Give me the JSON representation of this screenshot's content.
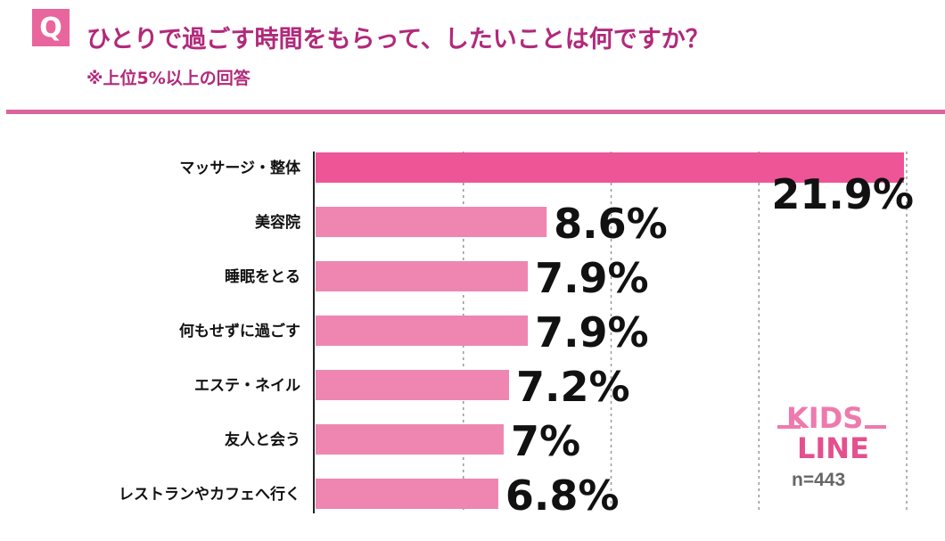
{
  "header": {
    "q_label": "Q",
    "title": "ひとりで過ごす時間をもらって、したいことは何ですか？",
    "subtitle": "※上位5%以上の回答"
  },
  "logo": {
    "text": "KIDS LINE"
  },
  "sample": "n=443",
  "colors": {
    "top_bar": "#ee5597",
    "bar": "#ee86b1",
    "accent": "#b2297a"
  },
  "chart_data": {
    "type": "bar",
    "orientation": "horizontal",
    "categories": [
      "マッサージ・整体",
      "美容院",
      "睡眠をとる",
      "何もせずに過ごす",
      "エステ・ネイル",
      "友人と会う",
      "レストランやカフェへ行く"
    ],
    "values": [
      21.9,
      8.6,
      7.9,
      7.9,
      7.2,
      7,
      6.8
    ],
    "labels": [
      "21.9%",
      "8.6%",
      "7.9%",
      "7.9%",
      "7.2%",
      "7%",
      "6.8%"
    ],
    "xlim": [
      0,
      22
    ],
    "grid": true,
    "unit": "%"
  }
}
